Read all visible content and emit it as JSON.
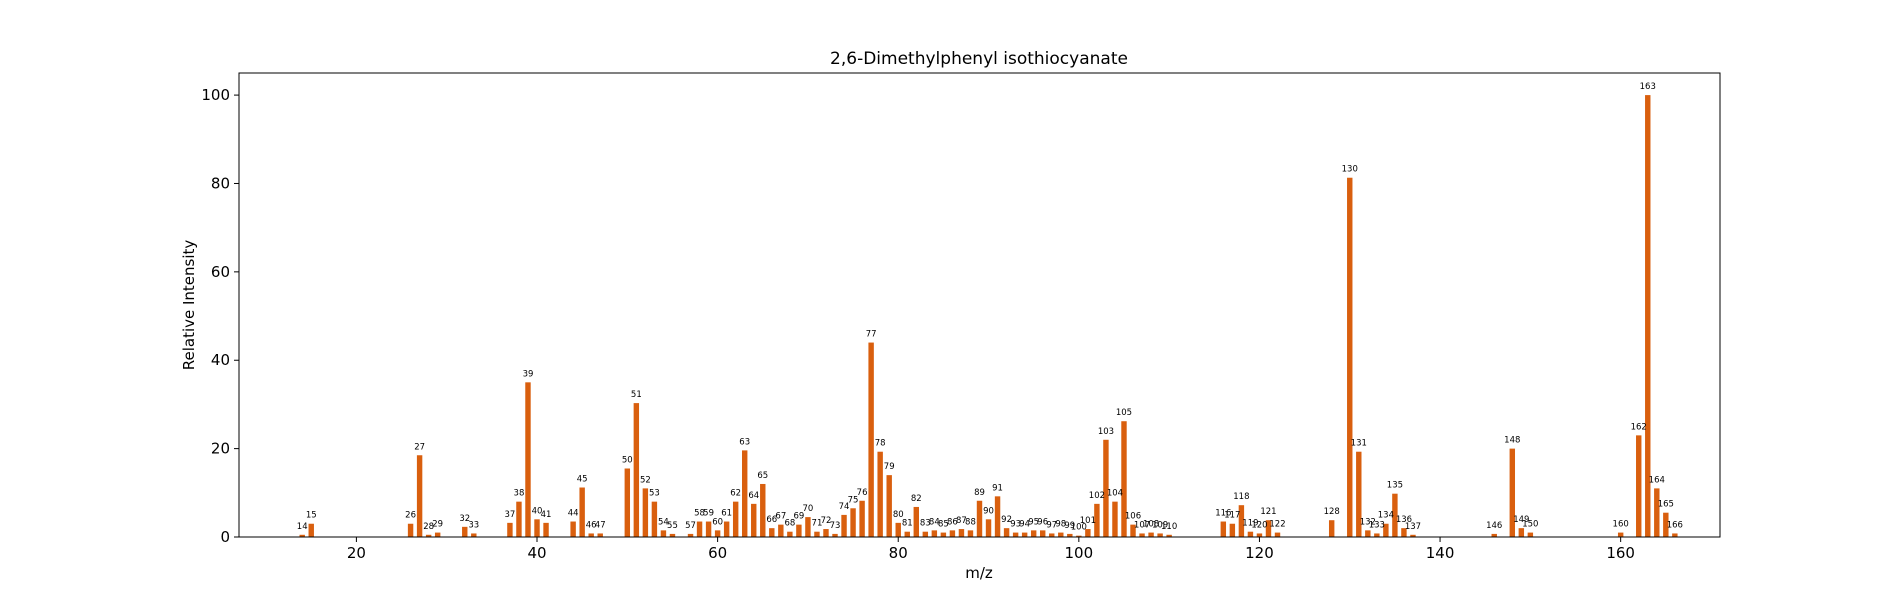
{
  "chart_data": {
    "type": "bar",
    "title": "2,6-Dimethylphenyl isothiocyanate",
    "xlabel": "m/z",
    "ylabel": "Relative Intensity",
    "xlim": [
      7,
      171
    ],
    "ylim": [
      0,
      105
    ],
    "xticks": [
      20,
      40,
      60,
      80,
      100,
      120,
      140,
      160
    ],
    "yticks": [
      0,
      20,
      40,
      60,
      80,
      100
    ],
    "bar_color": "#d95f0e",
    "grid": false,
    "legend": "none",
    "x": [
      14,
      15,
      26,
      27,
      28,
      29,
      32,
      33,
      37,
      38,
      39,
      40,
      41,
      44,
      45,
      46,
      47,
      50,
      51,
      52,
      53,
      54,
      55,
      57,
      58,
      59,
      60,
      61,
      62,
      63,
      64,
      65,
      66,
      67,
      68,
      69,
      70,
      71,
      72,
      73,
      74,
      75,
      76,
      77,
      78,
      79,
      80,
      81,
      82,
      83,
      84,
      85,
      86,
      87,
      88,
      89,
      90,
      91,
      92,
      93,
      94,
      95,
      96,
      97,
      98,
      99,
      100,
      101,
      102,
      103,
      104,
      105,
      106,
      107,
      108,
      109,
      110,
      116,
      117,
      118,
      119,
      120,
      121,
      122,
      128,
      130,
      131,
      132,
      133,
      134,
      135,
      136,
      137,
      146,
      148,
      149,
      150,
      160,
      162,
      163,
      164,
      165,
      166
    ],
    "values": [
      0.5,
      3,
      3,
      18.5,
      0.5,
      1,
      2.3,
      0.8,
      3.2,
      8,
      35,
      4,
      3.2,
      3.5,
      11.2,
      0.8,
      0.8,
      15.5,
      30.3,
      11,
      8,
      1.5,
      0.7,
      0.7,
      3.5,
      3.5,
      1.5,
      3.5,
      8,
      19.6,
      7.5,
      12,
      2,
      2.8,
      1.2,
      2.8,
      4.5,
      1.2,
      1.8,
      0.7,
      5,
      6.5,
      8.2,
      44,
      19.3,
      14,
      3.2,
      1.2,
      6.8,
      1.2,
      1.5,
      1,
      1.5,
      1.8,
      1.5,
      8.2,
      4,
      9.2,
      2,
      1,
      1,
      1.5,
      1.5,
      0.8,
      1,
      0.7,
      0.3,
      1.8,
      7.5,
      22,
      8,
      26.2,
      2.8,
      0.8,
      1,
      0.8,
      0.5,
      3.5,
      3,
      7.2,
      1.2,
      0.8,
      3.8,
      1,
      3.8,
      81.3,
      19.3,
      1.5,
      0.8,
      3,
      9.8,
      2,
      0.5,
      0.7,
      20,
      2,
      1,
      1,
      23,
      100,
      11,
      5.5,
      0.8
    ]
  }
}
